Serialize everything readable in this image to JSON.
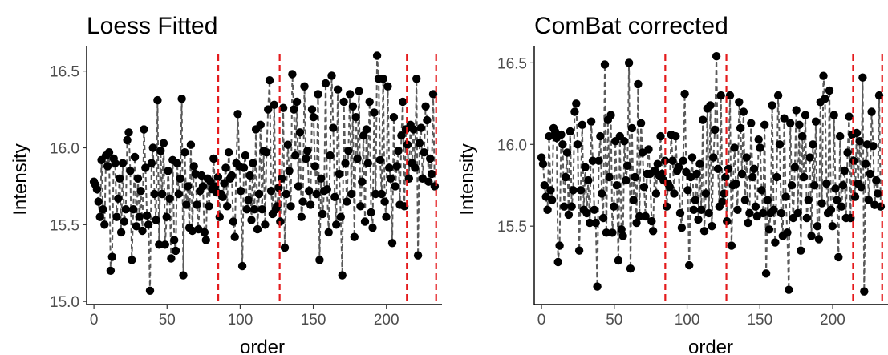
{
  "chart_data": [
    {
      "type": "scatter",
      "title": "Loess Fitted",
      "xlabel": "order",
      "ylabel": "Intensity",
      "xlim": [
        -5,
        238
      ],
      "ylim": [
        14.98,
        16.66
      ],
      "xticks": [
        0,
        50,
        100,
        150,
        200
      ],
      "yticks": [
        15.0,
        15.5,
        16.0,
        16.5
      ],
      "ytick_labels": [
        "15.0",
        "15.5",
        "16.0",
        "16.5"
      ],
      "connect_points": true,
      "line_style": "dashed",
      "vlines": [
        85,
        127,
        214,
        234
      ],
      "vline_color": "#e41a1c",
      "point_color": "#000000",
      "line_color": "#595959",
      "grid": false,
      "y": [
        15.78,
        15.76,
        15.73,
        15.65,
        15.55,
        15.92,
        15.6,
        15.5,
        15.95,
        15.88,
        15.97,
        15.2,
        15.29,
        15.93,
        15.9,
        15.55,
        15.67,
        15.8,
        15.45,
        15.9,
        15.52,
        15.6,
        16.05,
        16.1,
        15.85,
        15.27,
        15.6,
        15.94,
        15.49,
        15.8,
        15.55,
        15.72,
        15.46,
        16.12,
        15.87,
        15.56,
        15.5,
        15.07,
        15.9,
        16.0,
        15.7,
        15.53,
        16.31,
        15.37,
        15.98,
        15.7,
        16.03,
        15.37,
        15.55,
        15.85,
        15.67,
        15.28,
        15.92,
        15.4,
        15.33,
        15.9,
        15.7,
        15.8,
        16.32,
        15.17,
        15.97,
        15.63,
        15.75,
        15.48,
        16.02,
        15.46,
        15.88,
        15.83,
        15.63,
        15.47,
        15.72,
        15.82,
        15.75,
        15.45,
        15.4,
        15.8,
        15.62,
        15.78,
        15.73,
        15.93,
        15.75,
        15.71,
        15.81,
        15.55,
        15.7,
        15.68,
        15.77,
        15.87,
        15.62,
        15.97,
        15.8,
        15.82,
        15.52,
        15.42,
        15.9,
        16.22,
        15.88,
        15.72,
        15.23,
        15.87,
        15.95,
        15.6,
        15.66,
        15.82,
        15.53,
        15.9,
        15.6,
        16.12,
        15.47,
        15.7,
        16.15,
        15.6,
        15.98,
        15.5,
        15.97,
        16.25,
        16.44,
        15.72,
        15.57,
        16.28,
        15.6,
        15.62,
        15.74,
        15.52,
        15.8,
        16.26,
        15.35,
        15.7,
        16.02,
        15.85,
        15.62,
        16.48,
        16.25,
        15.95,
        16.3,
        15.75,
        16.1,
        15.55,
        15.65,
        16.4,
        15.93,
        15.98,
        15.72,
        15.63,
        16.25,
        16.2,
        15.88,
        15.7,
        16.35,
        15.27,
        15.8,
        15.57,
        15.72,
        16.42,
        15.73,
        15.45,
        15.95,
        16.47,
        16.13,
        15.68,
        15.5,
        16.38,
        15.83,
        15.55,
        15.17,
        16.3,
        15.9,
        15.65,
        15.98,
        16.35,
        15.7,
        16.27,
        15.42,
        16.2,
        15.93,
        16.37,
        15.62,
        15.78,
        16.08,
        15.52,
        16.12,
        15.9,
        16.3,
        15.58,
        15.48,
        16.23,
        15.7,
        16.6,
        16.45,
        15.92,
        15.7,
        16.45,
        15.65,
        15.55,
        16.4,
        15.87,
        15.8,
        15.38,
        16.2,
        15.75,
        15.88,
        15.98,
        15.63,
        16.08,
        16.3,
        15.62,
        16.12,
        16.02,
        15.8,
        16.15,
        15.9,
        16.12,
        15.87,
        16.45,
        15.3,
        16.03,
        16.13,
        15.8,
        15.97,
        16.27,
        16.18,
        15.78,
        15.93,
        15.83,
        16.35,
        15.75
      ]
    },
    {
      "type": "scatter",
      "title": "ComBat corrected",
      "xlabel": "order",
      "ylabel": "Intensity",
      "xlim": [
        -5,
        238
      ],
      "ylim": [
        15.02,
        16.6
      ],
      "xticks": [
        0,
        50,
        100,
        150,
        200
      ],
      "yticks": [
        15.5,
        16.0,
        16.5
      ],
      "ytick_labels": [
        "15.5",
        "16.0",
        "16.5"
      ],
      "connect_points": true,
      "line_style": "dashed",
      "vlines": [
        85,
        127,
        214,
        234
      ],
      "vline_color": "#e41a1c",
      "point_color": "#000000",
      "line_color": "#595959",
      "grid": false,
      "y": [
        15.92,
        15.88,
        15.75,
        15.68,
        15.6,
        16.05,
        15.72,
        15.66,
        16.1,
        16.08,
        16.04,
        15.28,
        15.38,
        16.06,
        16.0,
        15.62,
        15.8,
        15.95,
        15.57,
        16.08,
        15.62,
        15.72,
        16.2,
        16.25,
        16.0,
        15.35,
        15.72,
        16.12,
        15.6,
        15.86,
        15.58,
        15.78,
        15.52,
        16.14,
        15.9,
        15.6,
        15.52,
        15.13,
        15.9,
        16.05,
        15.7,
        15.55,
        16.49,
        15.46,
        16.15,
        15.8,
        16.18,
        15.46,
        15.62,
        16.02,
        15.75,
        15.29,
        16.05,
        15.48,
        15.44,
        16.02,
        15.78,
        15.87,
        16.5,
        15.24,
        16.1,
        15.66,
        15.8,
        15.52,
        16.37,
        15.56,
        16.13,
        15.95,
        15.74,
        15.56,
        15.82,
        15.97,
        15.82,
        15.53,
        15.47,
        15.84,
        15.7,
        15.88,
        15.81,
        16.05,
        15.82,
        15.78,
        15.9,
        15.62,
        15.76,
        15.74,
        16.06,
        15.9,
        15.7,
        16.05,
        15.84,
        15.86,
        15.58,
        15.49,
        15.9,
        16.31,
        15.83,
        15.72,
        15.26,
        15.8,
        15.92,
        15.6,
        15.66,
        15.82,
        15.54,
        15.88,
        15.6,
        16.15,
        15.47,
        15.7,
        16.22,
        15.58,
        16.24,
        15.5,
        15.92,
        16.09,
        16.54,
        15.85,
        15.62,
        16.3,
        15.65,
        15.7,
        15.8,
        15.53,
        15.85,
        16.3,
        15.38,
        15.75,
        15.98,
        15.76,
        15.6,
        16.26,
        16.1,
        15.82,
        16.2,
        15.66,
        15.92,
        15.52,
        15.58,
        16.13,
        15.8,
        15.85,
        15.62,
        15.56,
        16.03,
        15.98,
        15.72,
        15.58,
        16.12,
        15.21,
        15.66,
        15.48,
        15.58,
        16.24,
        15.6,
        15.4,
        15.8,
        16.3,
        16.0,
        15.58,
        15.44,
        16.16,
        15.68,
        15.46,
        15.11,
        16.13,
        15.75,
        15.55,
        15.86,
        16.21,
        15.58,
        16.12,
        15.35,
        16.05,
        15.8,
        16.18,
        15.55,
        15.66,
        15.92,
        15.44,
        16.0,
        15.75,
        16.14,
        15.5,
        15.42,
        16.26,
        15.64,
        16.42,
        16.28,
        15.76,
        15.58,
        16.33,
        15.6,
        15.5,
        16.18,
        15.73,
        15.66,
        15.31,
        16.05,
        15.62,
        15.75,
        15.84,
        15.55,
        15.95,
        16.17,
        15.55,
        16.06,
        15.9,
        15.68,
        16.07,
        15.76,
        16.02,
        15.74,
        16.41,
        15.1,
        15.88,
        16.0,
        15.66,
        15.82,
        16.2,
        15.99,
        15.63,
        15.78,
        15.7,
        16.3,
        15.62
      ]
    }
  ]
}
